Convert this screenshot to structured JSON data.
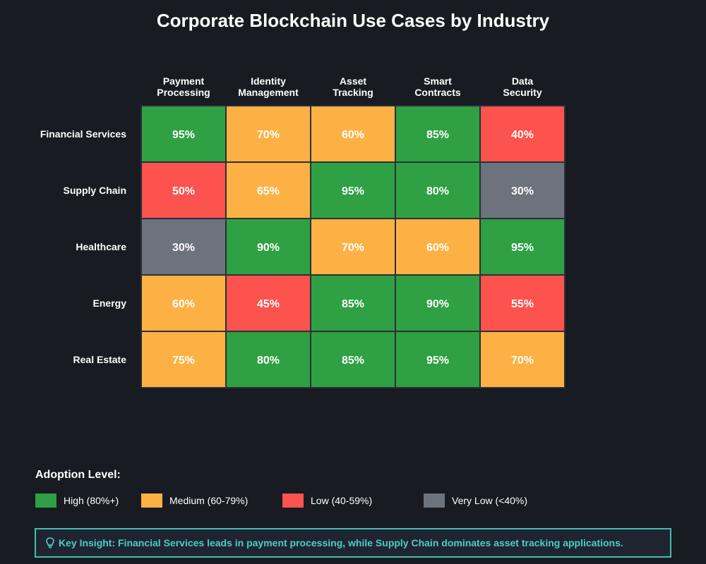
{
  "chart_data": {
    "type": "heatmap",
    "title": "Corporate Blockchain Use Cases by Industry",
    "columns": [
      [
        "Payment",
        "Processing"
      ],
      [
        "Identity",
        "Management"
      ],
      [
        "Asset",
        "Tracking"
      ],
      [
        "Smart",
        "Contracts"
      ],
      [
        "Data",
        "Security"
      ]
    ],
    "rows": [
      "Financial Services",
      "Supply Chain",
      "Healthcare",
      "Energy",
      "Real Estate"
    ],
    "values": [
      [
        95,
        70,
        60,
        85,
        40
      ],
      [
        50,
        65,
        95,
        80,
        30
      ],
      [
        30,
        90,
        70,
        60,
        95
      ],
      [
        60,
        45,
        85,
        90,
        55
      ],
      [
        75,
        80,
        85,
        95,
        70
      ]
    ],
    "value_suffix": "%",
    "levels": [
      {
        "name": "high",
        "min": 80,
        "color": "#2fa043"
      },
      {
        "name": "medium",
        "min": 60,
        "color": "#fdb144"
      },
      {
        "name": "low",
        "min": 40,
        "color": "#fc534f"
      },
      {
        "name": "very-low",
        "min": 0,
        "color": "#6d737d"
      }
    ]
  },
  "legend": {
    "title": "Adoption Level:",
    "items": [
      {
        "label": "High (80%+)",
        "color": "#2fa043"
      },
      {
        "label": "Medium (60-79%)",
        "color": "#fdb144"
      },
      {
        "label": "Low (40-59%)",
        "color": "#fc534f"
      },
      {
        "label": "Very Low (<40%)",
        "color": "#6d737d"
      }
    ]
  },
  "insight": {
    "icon": "lightbulb-icon",
    "text": "Key Insight: Financial Services leads in payment processing, while Supply Chain dominates asset tracking applications."
  },
  "colors": {
    "background": "#181b21",
    "accent": "#4ecdc4",
    "grid_border": "#2a2f38"
  }
}
